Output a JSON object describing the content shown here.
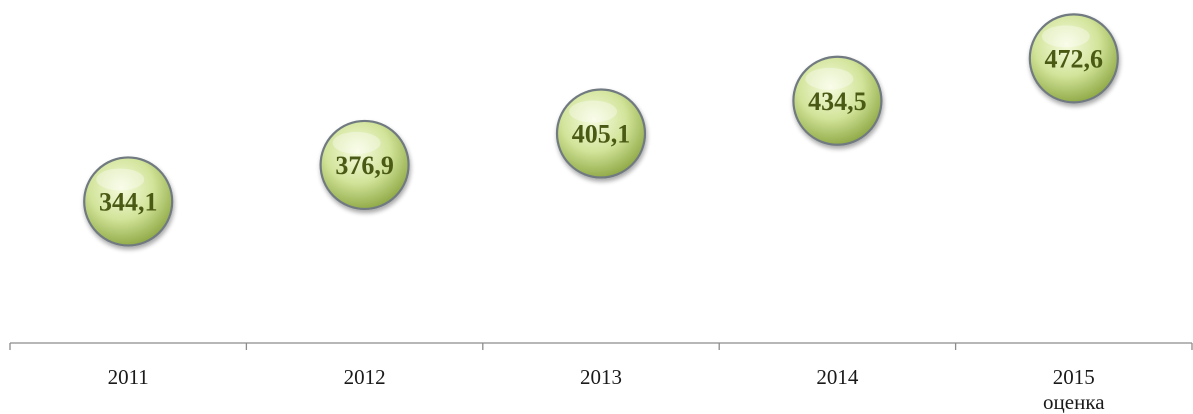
{
  "chart_data": {
    "type": "scatter",
    "title": "",
    "xlabel": "",
    "ylabel": "",
    "categories": [
      "2011",
      "2012",
      "2013",
      "2014",
      "2015"
    ],
    "category_sublabels": [
      "",
      "",
      "",
      "",
      "оценка"
    ],
    "values": [
      344.1,
      376.9,
      405.1,
      434.5,
      472.6
    ],
    "value_labels": [
      "344,1",
      "376,9",
      "405,1",
      "434,5",
      "472,6"
    ],
    "ylim": [
      217,
      525
    ],
    "grid": false,
    "legend": "none",
    "marker": "sphere",
    "colors": {
      "marker_fill": "#d2e49a",
      "marker_highlight": "#f6fbdf",
      "marker_shade": "#93ac4a",
      "marker_rim": "#707a80",
      "label_text": "#4a5a14",
      "axis": "#8c8c8c"
    }
  }
}
